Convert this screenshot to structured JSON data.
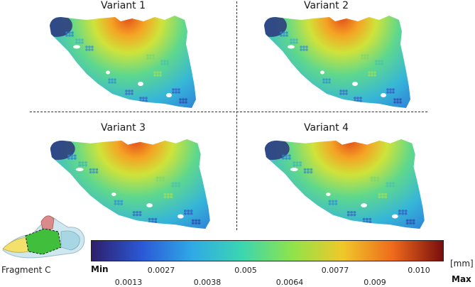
{
  "variants": [
    {
      "title": "Variant 1"
    },
    {
      "title": "Variant 2"
    },
    {
      "title": "Variant 3"
    },
    {
      "title": "Variant 4"
    }
  ],
  "colorbar": {
    "unit": "[mm]",
    "min_label": "Min",
    "max_label": "Max",
    "ticks_upper": [
      "0.0027",
      "0.005",
      "0.0077",
      "0.010"
    ],
    "ticks_lower": [
      "0.0013",
      "0.0038",
      "0.0064",
      "0.009"
    ],
    "colors": [
      "#2e1f6b",
      "#2b58d6",
      "#2fa9e6",
      "#3bd6b0",
      "#8fe34a",
      "#f0c82a",
      "#ee6a1c",
      "#7a0d0d"
    ]
  },
  "fragment": {
    "label": "Fragment C"
  }
}
